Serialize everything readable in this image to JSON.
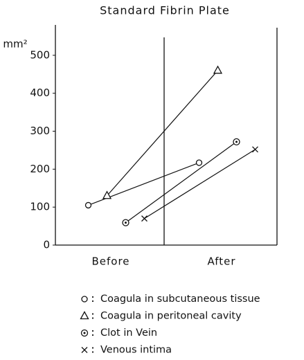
{
  "chart_data": {
    "type": "line",
    "title": "Standard Fibrin Plate",
    "y_label": "mm²",
    "categories": [
      "Before",
      "After"
    ],
    "ylim": [
      0,
      580
    ],
    "yticks": [
      0,
      100,
      200,
      300,
      400,
      500
    ],
    "series": [
      {
        "name": "Coagula in subcutaneous tissue",
        "marker": "circle",
        "color": "#111111",
        "values": [
          105,
          217
        ]
      },
      {
        "name": "Coagula in peritoneal cavity",
        "marker": "triangle",
        "color": "#111111",
        "values": [
          130,
          460
        ]
      },
      {
        "name": "Clot in Vein",
        "marker": "dotted-circle",
        "color": "#111111",
        "values": [
          59,
          272
        ]
      },
      {
        "name": "Venous intima",
        "marker": "cross",
        "color": "#111111",
        "values": [
          70,
          252
        ]
      }
    ]
  }
}
